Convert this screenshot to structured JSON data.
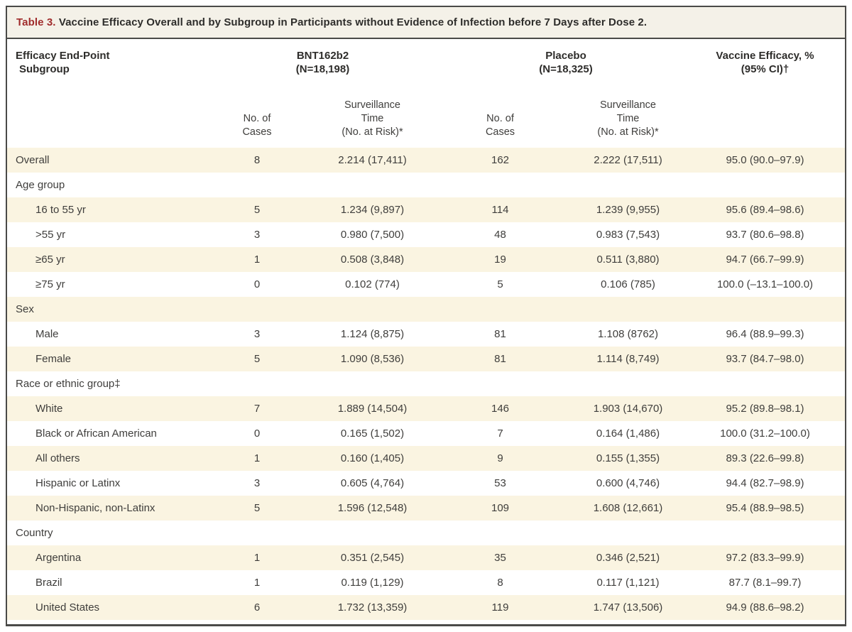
{
  "title": {
    "label": "Table 3.",
    "text": "Vaccine Efficacy Overall and by Subgroup in Participants without Evidence of Infection before 7 Days after Dose 2."
  },
  "header": {
    "subgroup_line1": "Efficacy End-Point",
    "subgroup_line2": "Subgroup",
    "bnt_name": "BNT162b2",
    "bnt_n": "(N=18,198)",
    "pbo_name": "Placebo",
    "pbo_n": "(N=18,325)",
    "efficacy_line1": "Vaccine Efficacy, %",
    "efficacy_line2": "(95% CI)†",
    "subcols": {
      "cases_line1": "No. of",
      "cases_line2": "Cases",
      "surv_line1": "Surveillance",
      "surv_line2": "Time",
      "surv_line3": "(No. at Risk)*"
    }
  },
  "rows": [
    {
      "label": "Overall",
      "section": false,
      "indent": false,
      "bnt_cases": "8",
      "bnt_surv": "2.214 (17,411)",
      "pbo_cases": "162",
      "pbo_surv": "2.222 (17,511)",
      "ve": "95.0 (90.0–97.9)"
    },
    {
      "label": "Age group",
      "section": true,
      "indent": false
    },
    {
      "label": "16 to 55 yr",
      "section": false,
      "indent": true,
      "bnt_cases": "5",
      "bnt_surv": "1.234 (9,897)",
      "pbo_cases": "114",
      "pbo_surv": "1.239 (9,955)",
      "ve": "95.6 (89.4–98.6)"
    },
    {
      "label": ">55 yr",
      "section": false,
      "indent": true,
      "bnt_cases": "3",
      "bnt_surv": "0.980 (7,500)",
      "pbo_cases": "48",
      "pbo_surv": "0.983 (7,543)",
      "ve": "93.7 (80.6–98.8)"
    },
    {
      "label": "≥65 yr",
      "section": false,
      "indent": true,
      "bnt_cases": "1",
      "bnt_surv": "0.508 (3,848)",
      "pbo_cases": "19",
      "pbo_surv": "0.511 (3,880)",
      "ve": "94.7 (66.7–99.9)"
    },
    {
      "label": "≥75 yr",
      "section": false,
      "indent": true,
      "bnt_cases": "0",
      "bnt_surv": "0.102 (774)",
      "pbo_cases": "5",
      "pbo_surv": "0.106 (785)",
      "ve": "100.0 (–13.1–100.0)"
    },
    {
      "label": "Sex",
      "section": true,
      "indent": false
    },
    {
      "label": "Male",
      "section": false,
      "indent": true,
      "bnt_cases": "3",
      "bnt_surv": "1.124 (8,875)",
      "pbo_cases": "81",
      "pbo_surv": "1.108 (8762)",
      "ve": "96.4 (88.9–99.3)"
    },
    {
      "label": "Female",
      "section": false,
      "indent": true,
      "bnt_cases": "5",
      "bnt_surv": "1.090 (8,536)",
      "pbo_cases": "81",
      "pbo_surv": "1.114 (8,749)",
      "ve": "93.7 (84.7–98.0)"
    },
    {
      "label": "Race or ethnic group‡",
      "section": true,
      "indent": false
    },
    {
      "label": "White",
      "section": false,
      "indent": true,
      "bnt_cases": "7",
      "bnt_surv": "1.889 (14,504)",
      "pbo_cases": "146",
      "pbo_surv": "1.903 (14,670)",
      "ve": "95.2 (89.8–98.1)"
    },
    {
      "label": "Black or African American",
      "section": false,
      "indent": true,
      "bnt_cases": "0",
      "bnt_surv": "0.165 (1,502)",
      "pbo_cases": "7",
      "pbo_surv": "0.164 (1,486)",
      "ve": "100.0 (31.2–100.0)"
    },
    {
      "label": "All others",
      "section": false,
      "indent": true,
      "bnt_cases": "1",
      "bnt_surv": "0.160 (1,405)",
      "pbo_cases": "9",
      "pbo_surv": "0.155 (1,355)",
      "ve": "89.3 (22.6–99.8)"
    },
    {
      "label": "Hispanic or Latinx",
      "section": false,
      "indent": true,
      "bnt_cases": "3",
      "bnt_surv": "0.605 (4,764)",
      "pbo_cases": "53",
      "pbo_surv": "0.600 (4,746)",
      "ve": "94.4 (82.7–98.9)"
    },
    {
      "label": "Non-Hispanic, non-Latinx",
      "section": false,
      "indent": true,
      "bnt_cases": "5",
      "bnt_surv": "1.596 (12,548)",
      "pbo_cases": "109",
      "pbo_surv": "1.608 (12,661)",
      "ve": "95.4 (88.9–98.5)"
    },
    {
      "label": "Country",
      "section": true,
      "indent": false
    },
    {
      "label": "Argentina",
      "section": false,
      "indent": true,
      "bnt_cases": "1",
      "bnt_surv": "0.351 (2,545)",
      "pbo_cases": "35",
      "pbo_surv": "0.346 (2,521)",
      "ve": "97.2 (83.3–99.9)"
    },
    {
      "label": "Brazil",
      "section": false,
      "indent": true,
      "bnt_cases": "1",
      "bnt_surv": "0.119 (1,129)",
      "pbo_cases": "8",
      "pbo_surv": "0.117 (1,121)",
      "ve": "87.7 (8.1–99.7)"
    },
    {
      "label": "United States",
      "section": false,
      "indent": true,
      "bnt_cases": "6",
      "bnt_surv": "1.732 (13,359)",
      "pbo_cases": "119",
      "pbo_surv": "1.747 (13,506)",
      "ve": "94.9 (88.6–98.2)"
    }
  ],
  "colors": {
    "accent_red": "#a02c2c",
    "row_stripe": "#faf4e1",
    "title_band": "#f4f1e8",
    "border": "#4a4a48",
    "text": "#3f3e3c"
  }
}
